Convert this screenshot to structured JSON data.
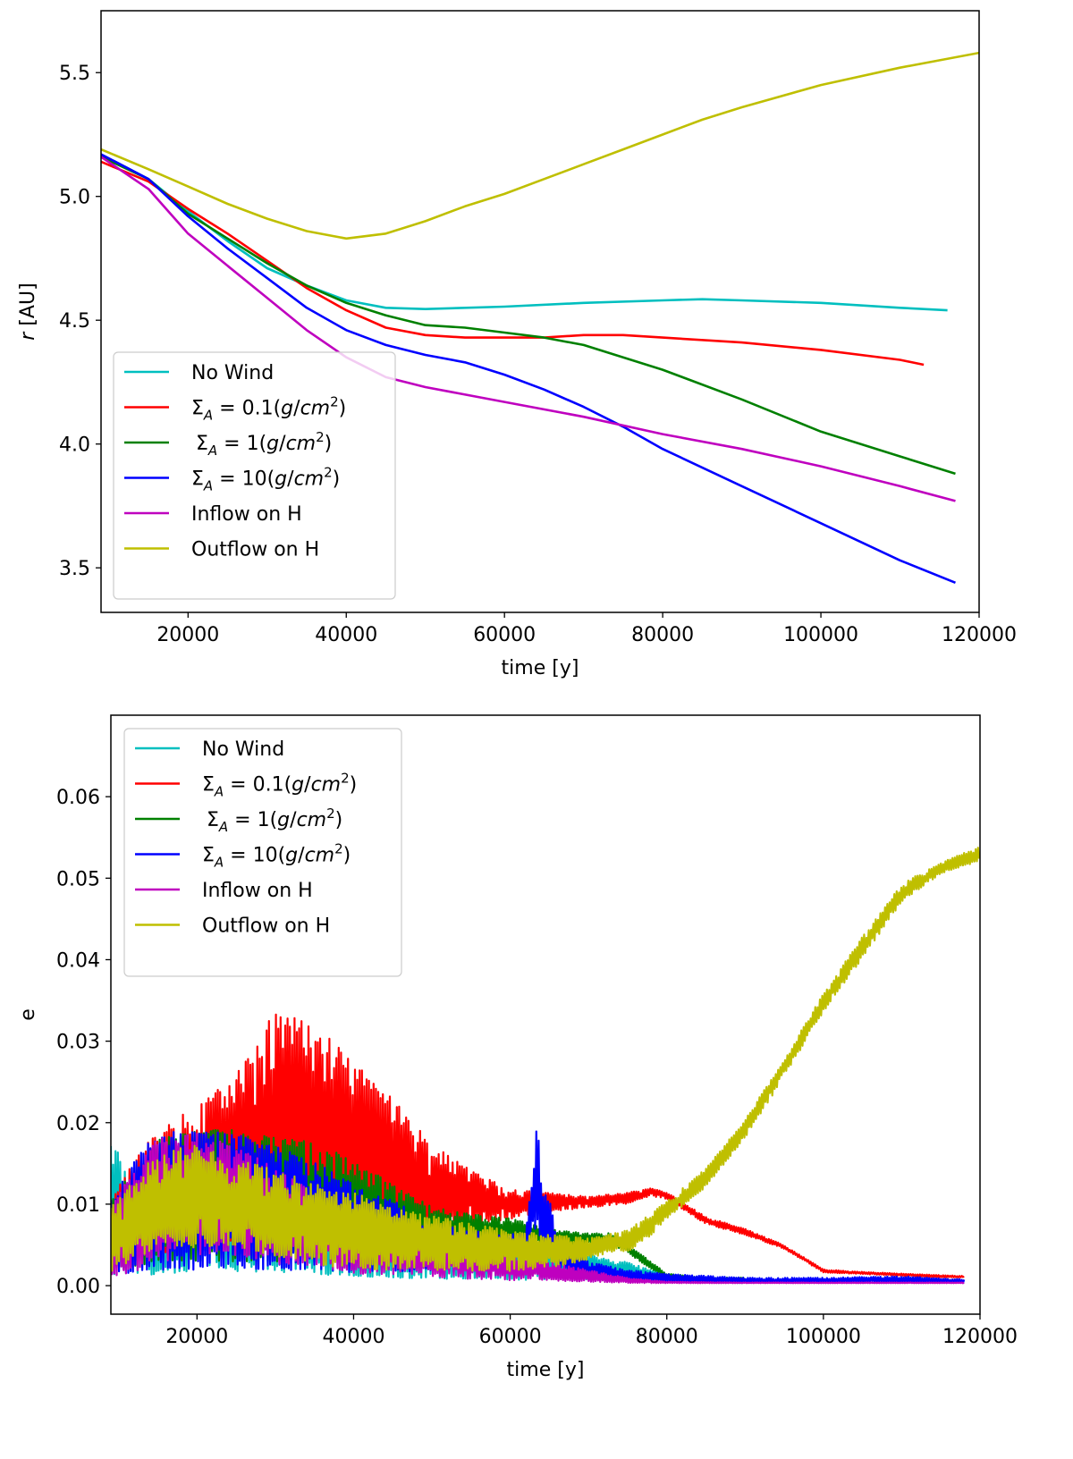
{
  "chart_data": [
    {
      "type": "line",
      "xlabel": "time [y]",
      "ylabel": "r [AU]",
      "ylabel_italic": "r",
      "ylabel_rest": " [AU]",
      "xlim": [
        9000,
        120000
      ],
      "ylim": [
        3.32,
        5.75
      ],
      "xticks": [
        20000,
        40000,
        60000,
        80000,
        100000,
        120000
      ],
      "xtick_labels": [
        "20000",
        "40000",
        "60000",
        "80000",
        "100000",
        "120000"
      ],
      "yticks": [
        3.5,
        4.0,
        4.5,
        5.0,
        5.5
      ],
      "ytick_labels": [
        "3.5",
        "4.0",
        "4.5",
        "5.0",
        "5.5"
      ],
      "legend_position": "lower-left",
      "series": [
        {
          "name": "No Wind",
          "color": "#00bfbf",
          "x": [
            9000,
            15000,
            20000,
            25000,
            30000,
            35000,
            40000,
            45000,
            50000,
            60000,
            70000,
            80000,
            85000,
            90000,
            100000,
            110000,
            116000
          ],
          "y": [
            5.17,
            5.07,
            4.94,
            4.82,
            4.71,
            4.64,
            4.58,
            4.55,
            4.545,
            4.555,
            4.57,
            4.58,
            4.585,
            4.58,
            4.57,
            4.55,
            4.54
          ]
        },
        {
          "name": "Σ_A = 0.1(g/cm²)",
          "color": "#ff0000",
          "x": [
            9000,
            15000,
            20000,
            25000,
            30000,
            35000,
            40000,
            45000,
            50000,
            55000,
            60000,
            65000,
            70000,
            75000,
            80000,
            90000,
            100000,
            110000,
            113000
          ],
          "y": [
            5.14,
            5.06,
            4.95,
            4.85,
            4.74,
            4.63,
            4.54,
            4.47,
            4.44,
            4.43,
            4.43,
            4.43,
            4.44,
            4.44,
            4.43,
            4.41,
            4.38,
            4.34,
            4.32
          ]
        },
        {
          "name": "Σ_A = 1(g/cm²)",
          "color": "#008000",
          "x": [
            9000,
            15000,
            20000,
            25000,
            30000,
            35000,
            40000,
            45000,
            50000,
            55000,
            60000,
            65000,
            70000,
            80000,
            90000,
            100000,
            110000,
            117000
          ],
          "y": [
            5.16,
            5.07,
            4.93,
            4.83,
            4.73,
            4.64,
            4.57,
            4.52,
            4.48,
            4.47,
            4.45,
            4.43,
            4.4,
            4.3,
            4.18,
            4.05,
            3.95,
            3.88
          ]
        },
        {
          "name": "Σ_A = 10(g/cm²)",
          "color": "#0000ff",
          "x": [
            9000,
            15000,
            20000,
            25000,
            30000,
            35000,
            40000,
            45000,
            50000,
            55000,
            60000,
            65000,
            70000,
            75000,
            80000,
            90000,
            100000,
            110000,
            117000
          ],
          "y": [
            5.17,
            5.07,
            4.92,
            4.79,
            4.67,
            4.55,
            4.46,
            4.4,
            4.36,
            4.33,
            4.28,
            4.22,
            4.15,
            4.07,
            3.98,
            3.83,
            3.68,
            3.53,
            3.44
          ]
        },
        {
          "name": "Inflow on H",
          "color": "#bf00bf",
          "x": [
            9000,
            15000,
            20000,
            25000,
            30000,
            35000,
            40000,
            45000,
            50000,
            60000,
            70000,
            80000,
            90000,
            100000,
            110000,
            117000
          ],
          "y": [
            5.16,
            5.03,
            4.85,
            4.72,
            4.59,
            4.46,
            4.35,
            4.27,
            4.23,
            4.17,
            4.11,
            4.04,
            3.98,
            3.91,
            3.83,
            3.77
          ]
        },
        {
          "name": "Outflow on H",
          "color": "#bfbf00",
          "x": [
            9000,
            15000,
            20000,
            25000,
            30000,
            35000,
            40000,
            45000,
            50000,
            55000,
            60000,
            65000,
            70000,
            75000,
            80000,
            85000,
            90000,
            100000,
            110000,
            120000
          ],
          "y": [
            5.19,
            5.11,
            5.04,
            4.97,
            4.91,
            4.86,
            4.83,
            4.85,
            4.9,
            4.96,
            5.01,
            5.07,
            5.13,
            5.19,
            5.25,
            5.31,
            5.36,
            5.45,
            5.52,
            5.58
          ]
        }
      ]
    },
    {
      "type": "line",
      "xlabel": "time [y]",
      "ylabel": "e",
      "xlim": [
        9000,
        120000
      ],
      "ylim": [
        -0.0035,
        0.07
      ],
      "xticks": [
        20000,
        40000,
        60000,
        80000,
        100000,
        120000
      ],
      "xtick_labels": [
        "20000",
        "40000",
        "60000",
        "80000",
        "100000",
        "120000"
      ],
      "yticks": [
        0.0,
        0.01,
        0.02,
        0.03,
        0.04,
        0.05,
        0.06
      ],
      "ytick_labels": [
        "0.00",
        "0.01",
        "0.02",
        "0.03",
        "0.04",
        "0.05",
        "0.06"
      ],
      "legend_position": "upper-left",
      "series": [
        {
          "name": "No Wind",
          "color": "#00bfbf",
          "x": [
            9000,
            10000,
            11000,
            15000,
            20000,
            30000,
            40000,
            50000,
            60000,
            70000,
            75000,
            80000,
            85000,
            90000
          ],
          "upper": [
            0.018,
            0.0175,
            0.014,
            0.015,
            0.017,
            0.014,
            0.01,
            0.007,
            0.005,
            0.004,
            0.003,
            0.0015,
            0.001,
            0.0006
          ],
          "lower": [
            0.0005,
            0.0005,
            0.0005,
            0.0007,
            0.001,
            0.001,
            0.0007,
            0.0005,
            0.0005,
            0.0005,
            0.0005,
            0.0004,
            0.0003,
            0.0003
          ]
        },
        {
          "name": "Σ_A = 0.1(g/cm²)",
          "color": "#ff0000",
          "x": [
            9000,
            12000,
            15000,
            20000,
            25000,
            30000,
            35000,
            40000,
            45000,
            50000,
            55000,
            60000,
            65000,
            70000,
            75000,
            78000,
            80000,
            85000,
            90000,
            95000,
            100000,
            105000,
            110000,
            115000,
            118000
          ],
          "upper": [
            0.011,
            0.016,
            0.02,
            0.023,
            0.027,
            0.0355,
            0.034,
            0.029,
            0.024,
            0.018,
            0.0145,
            0.012,
            0.0115,
            0.011,
            0.0115,
            0.012,
            0.0115,
            0.0085,
            0.007,
            0.005,
            0.002,
            0.0017,
            0.0015,
            0.0013,
            0.0012
          ],
          "lower": [
            0.001,
            0.003,
            0.003,
            0.004,
            0.004,
            0.003,
            0.002,
            0.002,
            0.003,
            0.005,
            0.007,
            0.008,
            0.009,
            0.0095,
            0.01,
            0.011,
            0.0105,
            0.0075,
            0.0062,
            0.0045,
            0.0016,
            0.0014,
            0.0012,
            0.001,
            0.001
          ]
        },
        {
          "name": "Σ_A = 1(g/cm²)",
          "color": "#008000",
          "x": [
            9000,
            15000,
            20000,
            25000,
            30000,
            35000,
            40000,
            45000,
            50000,
            55000,
            60000,
            65000,
            70000,
            73000,
            75000,
            78000,
            80000,
            85000,
            90000
          ],
          "upper": [
            0.011,
            0.019,
            0.02,
            0.02,
            0.019,
            0.0185,
            0.016,
            0.013,
            0.01,
            0.009,
            0.0085,
            0.007,
            0.0065,
            0.0065,
            0.005,
            0.003,
            0.0015,
            0.001,
            0.001
          ],
          "lower": [
            0.001,
            0.002,
            0.002,
            0.002,
            0.002,
            0.002,
            0.002,
            0.0025,
            0.003,
            0.004,
            0.005,
            0.005,
            0.005,
            0.005,
            0.004,
            0.002,
            0.001,
            0.0007,
            0.0007
          ]
        },
        {
          "name": "Σ_A = 10(g/cm²)",
          "color": "#0000ff",
          "x": [
            9000,
            12000,
            15000,
            20000,
            25000,
            30000,
            35000,
            40000,
            45000,
            50000,
            55000,
            60000,
            62000,
            63000,
            63500,
            64000,
            65000,
            66000,
            70000,
            75000,
            80000,
            90000,
            100000,
            110000,
            118000
          ],
          "upper": [
            0.011,
            0.016,
            0.02,
            0.02,
            0.0195,
            0.018,
            0.016,
            0.013,
            0.011,
            0.008,
            0.007,
            0.0065,
            0.0065,
            0.016,
            0.0215,
            0.012,
            0.011,
            0.006,
            0.003,
            0.002,
            0.0015,
            0.001,
            0.001,
            0.0012,
            0.0008
          ],
          "lower": [
            0.0005,
            0.001,
            0.001,
            0.001,
            0.001,
            0.001,
            0.001,
            0.001,
            0.0012,
            0.0015,
            0.002,
            0.004,
            0.005,
            0.006,
            0.006,
            0.005,
            0.004,
            0.002,
            0.001,
            0.0005,
            0.0003,
            0.0003,
            0.0003,
            0.0003,
            0.0003
          ]
        },
        {
          "name": "Inflow on H",
          "color": "#bf00bf",
          "x": [
            9000,
            12000,
            15000,
            20000,
            25000,
            30000,
            35000,
            40000,
            45000,
            50000,
            55000,
            60000,
            65000,
            70000,
            75000,
            80000,
            90000,
            100000,
            110000,
            118000
          ],
          "upper": [
            0.01,
            0.015,
            0.019,
            0.0195,
            0.018,
            0.015,
            0.012,
            0.01,
            0.008,
            0.006,
            0.005,
            0.004,
            0.003,
            0.002,
            0.001,
            0.0005,
            0.0004,
            0.0004,
            0.0004,
            0.0004
          ],
          "lower": [
            0.0005,
            0.001,
            0.002,
            0.003,
            0.003,
            0.002,
            0.002,
            0.001,
            0.001,
            0.0008,
            0.0006,
            0.0005,
            0.0005,
            0.0004,
            0.0003,
            0.0003,
            0.0003,
            0.0003,
            0.0003,
            0.0003
          ]
        },
        {
          "name": "Outflow on H",
          "color": "#bfbf00",
          "x": [
            9000,
            12000,
            15000,
            20000,
            25000,
            30000,
            35000,
            40000,
            45000,
            50000,
            55000,
            60000,
            65000,
            70000,
            73000,
            75000,
            78000,
            80000,
            85000,
            90000,
            95000,
            100000,
            105000,
            110000,
            115000,
            120000
          ],
          "upper": [
            0.01,
            0.014,
            0.017,
            0.018,
            0.016,
            0.015,
            0.013,
            0.012,
            0.01,
            0.009,
            0.008,
            0.007,
            0.0065,
            0.006,
            0.0065,
            0.007,
            0.009,
            0.0105,
            0.0145,
            0.0205,
            0.028,
            0.036,
            0.043,
            0.0495,
            0.052,
            0.054
          ],
          "lower": [
            0.001,
            0.0025,
            0.004,
            0.004,
            0.004,
            0.003,
            0.002,
            0.0015,
            0.0015,
            0.0015,
            0.0015,
            0.0015,
            0.002,
            0.003,
            0.004,
            0.004,
            0.006,
            0.008,
            0.012,
            0.018,
            0.0255,
            0.0335,
            0.04,
            0.047,
            0.0505,
            0.052
          ]
        }
      ]
    }
  ]
}
